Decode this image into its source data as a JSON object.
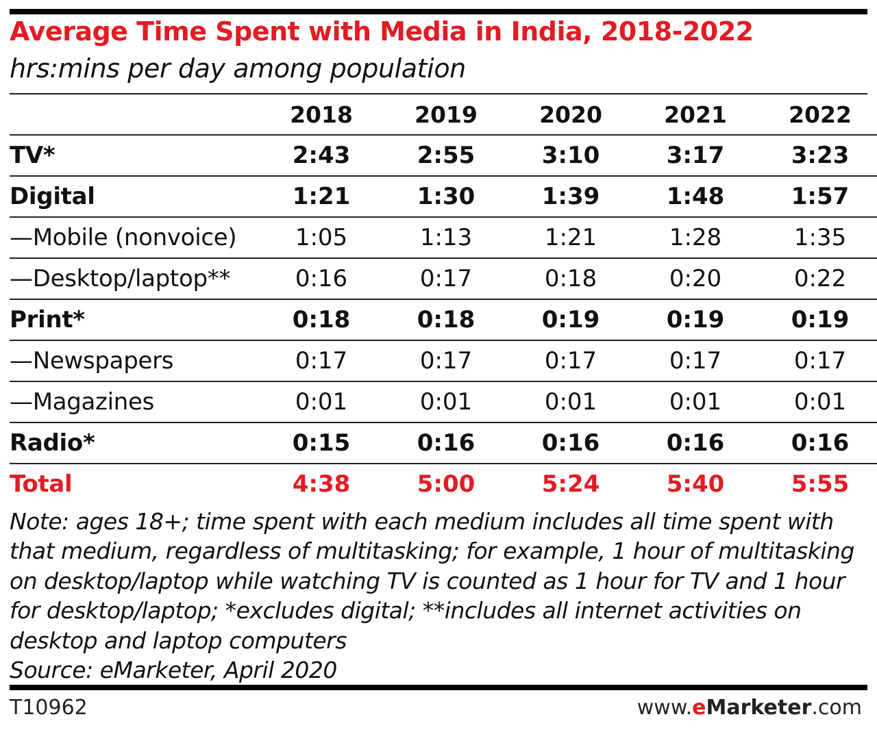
{
  "header": {
    "title": "Average Time Spent with Media in India, 2018-2022",
    "subtitle": "hrs:mins per day among population"
  },
  "chart_data": {
    "type": "table",
    "title": "Average Time Spent with Media in India, 2018-2022",
    "subtitle": "hrs:mins per day among population",
    "columns": [
      "2018",
      "2019",
      "2020",
      "2021",
      "2022"
    ],
    "rows": [
      {
        "label": "TV*",
        "style": "bold",
        "values": [
          "2:43",
          "2:55",
          "3:10",
          "3:17",
          "3:23"
        ]
      },
      {
        "label": "Digital",
        "style": "bold",
        "values": [
          "1:21",
          "1:30",
          "1:39",
          "1:48",
          "1:57"
        ]
      },
      {
        "label": "—Mobile (nonvoice)",
        "style": "normal",
        "values": [
          "1:05",
          "1:13",
          "1:21",
          "1:28",
          "1:35"
        ]
      },
      {
        "label": "—Desktop/laptop**",
        "style": "normal",
        "values": [
          "0:16",
          "0:17",
          "0:18",
          "0:20",
          "0:22"
        ]
      },
      {
        "label": "Print*",
        "style": "bold",
        "values": [
          "0:18",
          "0:18",
          "0:19",
          "0:19",
          "0:19"
        ]
      },
      {
        "label": "—Newspapers",
        "style": "normal",
        "values": [
          "0:17",
          "0:17",
          "0:17",
          "0:17",
          "0:17"
        ]
      },
      {
        "label": "—Magazines",
        "style": "normal",
        "values": [
          "0:01",
          "0:01",
          "0:01",
          "0:01",
          "0:01"
        ]
      },
      {
        "label": "Radio*",
        "style": "bold",
        "values": [
          "0:15",
          "0:16",
          "0:16",
          "0:16",
          "0:16"
        ]
      },
      {
        "label": "Total",
        "style": "total",
        "values": [
          "4:38",
          "5:00",
          "5:24",
          "5:40",
          "5:55"
        ]
      }
    ],
    "accent_color": "#e31b23"
  },
  "notes": {
    "note": "Note: ages 18+; time spent with each medium includes all time spent with that medium, regardless of multitasking; for example, 1 hour of multitasking on desktop/laptop while watching TV is counted as 1 hour for TV and 1 hour for desktop/laptop; *excludes digital; **includes all internet activities on desktop and laptop computers",
    "source": "Source: eMarketer, April 2020"
  },
  "footer": {
    "chart_id": "T10962",
    "brand_prefix": "www.",
    "brand_e": "e",
    "brand_name": "Marketer",
    "brand_suffix": ".com"
  }
}
